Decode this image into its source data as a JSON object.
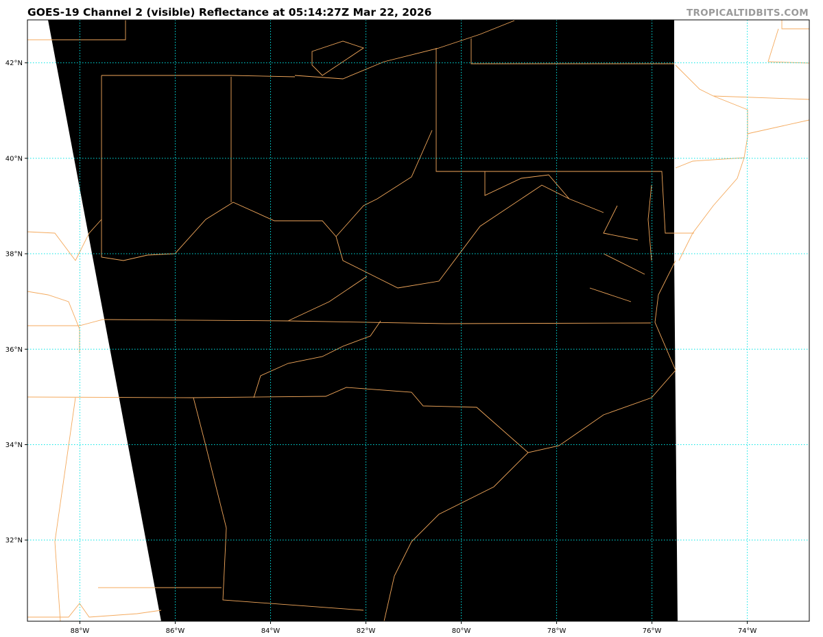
{
  "header": {
    "title": "GOES-19 Channel 2 (visible) Reflectance at 05:14:27Z Mar 22, 2026",
    "credit": "TROPICALTIDBITS.COM"
  },
  "map": {
    "extent": {
      "lon": [
        -89.1,
        -72.7
      ],
      "lat": [
        30.3,
        42.9
      ]
    },
    "longitude_ticks": [
      {
        "value": -88,
        "label": "88°W"
      },
      {
        "value": -86,
        "label": "86°W"
      },
      {
        "value": -84,
        "label": "84°W"
      },
      {
        "value": -82,
        "label": "82°W"
      },
      {
        "value": -80,
        "label": "80°W"
      },
      {
        "value": -78,
        "label": "78°W"
      },
      {
        "value": -76,
        "label": "76°W"
      },
      {
        "value": -74,
        "label": "74°W"
      }
    ],
    "latitude_ticks": [
      {
        "value": 42,
        "label": "42°N"
      },
      {
        "value": 40,
        "label": "40°N"
      },
      {
        "value": 38,
        "label": "38°N"
      },
      {
        "value": 36,
        "label": "36°N"
      },
      {
        "value": 34,
        "label": "34°N"
      },
      {
        "value": 32,
        "label": "32°N"
      }
    ],
    "colors": {
      "imagery": "#000000",
      "no_data": "#ffffff",
      "borders": "#f4a95c",
      "gridlines": "#00e5e5"
    }
  }
}
